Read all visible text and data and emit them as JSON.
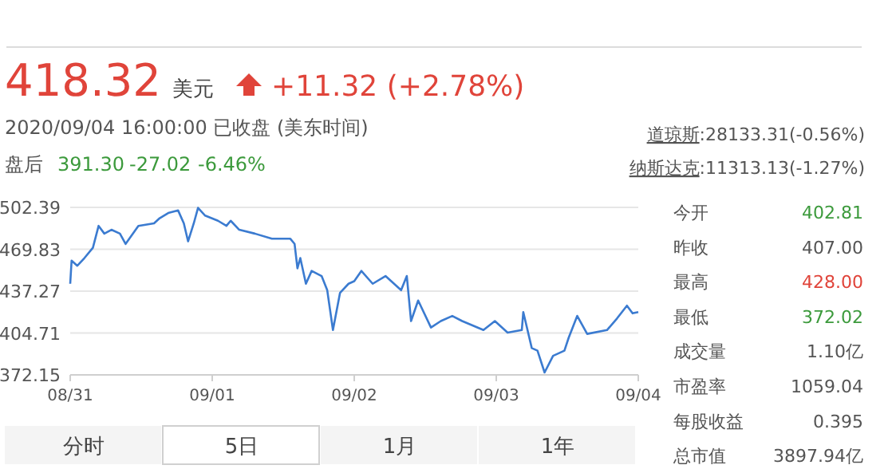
{
  "chart_data": [
    {
      "type": "other",
      "title": "418.32",
      "annotations": [
        "美元",
        "+11.32 (+2.78%)",
        "2020/09/04 16:00:00 已收盘 (美东时间)",
        "盘后",
        "391.30",
        "-27.02",
        "-6.46%",
        "道琼斯",
        ":28133.31(-0.56%)",
        "纳斯达克",
        ":11313.13(-1.27%)"
      ]
    },
    {
      "type": "line",
      "x": [
        "2020-08-31T00:00",
        "2020-08-31T00:14",
        "2020-08-31T01:12",
        "2020-08-31T02:24",
        "2020-08-31T03:50",
        "2020-08-31T04:48",
        "2020-08-31T05:46",
        "2020-08-31T06:58",
        "2020-08-31T08:24",
        "2020-08-31T09:22",
        "2020-08-31T11:31",
        "2020-08-31T14:10",
        "2020-08-31T15:07",
        "2020-08-31T16:34",
        "2020-08-31T18:14",
        "2020-08-31T19:12",
        "2020-08-31T19:55",
        "2020-08-31T20:53",
        "2020-08-31T21:36",
        "2020-08-31T22:48",
        "2020-09-01T00:58",
        "2020-09-01T02:24",
        "2020-09-01T03:07",
        "2020-09-01T04:34",
        "2020-09-01T07:12",
        "2020-09-01T10:05",
        "2020-09-01T13:12",
        "2020-09-01T13:55",
        "2020-09-01T14:24",
        "2020-09-01T14:53",
        "2020-09-01T15:50",
        "2020-09-01T16:48",
        "2020-09-01T18:29",
        "2020-09-01T19:26",
        "2020-09-01T20:24",
        "2020-09-01T21:36",
        "2020-09-01T23:02",
        "2020-09-02T00:00",
        "2020-09-02T01:12",
        "2020-09-02T03:07",
        "2020-09-02T05:17",
        "2020-09-02T07:55",
        "2020-09-02T08:53",
        "2020-09-02T09:36",
        "2020-09-02T10:48",
        "2020-09-02T12:58",
        "2020-09-02T14:38",
        "2020-09-02T16:34",
        "2020-09-02T18:14",
        "2020-09-02T21:50",
        "2020-09-02T23:46",
        "2020-09-03T01:55",
        "2020-09-03T04:19",
        "2020-09-03T04:34",
        "2020-09-03T06:00",
        "2020-09-03T06:58",
        "2020-09-03T08:10",
        "2020-09-03T09:36",
        "2020-09-03T11:31",
        "2020-09-03T12:14",
        "2020-09-03T13:41",
        "2020-09-03T15:22",
        "2020-09-03T18:43",
        "2020-09-03T20:24",
        "2020-09-03T22:05",
        "2020-09-03T23:02",
        "2020-09-04T00:00"
      ],
      "series": [
        {
          "color": "#3b7bd0",
          "values": [
            443,
            461,
            457,
            463,
            471,
            488,
            482,
            485,
            482,
            474,
            488,
            490,
            494,
            498,
            500,
            490,
            476,
            490,
            502,
            496,
            492,
            488,
            492,
            485,
            482,
            478,
            478,
            474,
            455,
            463,
            443,
            453,
            449,
            438,
            407,
            436,
            443,
            445,
            453,
            443,
            449,
            438,
            449,
            414,
            430,
            409,
            414,
            418,
            414,
            407,
            414,
            405,
            407,
            421,
            393,
            391,
            374,
            387,
            391,
            401,
            418,
            404,
            407,
            416,
            426,
            420,
            421
          ]
        }
      ],
      "xlim": [
        "2020-08-31",
        "2020-09-04"
      ],
      "xticks": [
        {
          "value": "2020-08-31",
          "label": "08/31"
        },
        {
          "value": "2020-09-01",
          "label": "09/01"
        },
        {
          "value": "2020-09-02",
          "label": "09/02"
        },
        {
          "value": "2020-09-03",
          "label": "09/03"
        },
        {
          "value": "2020-09-04",
          "label": "09/04"
        }
      ],
      "ylim": [
        372.15,
        502.39
      ],
      "yticks": [
        {
          "value": 372.15,
          "label": "372.15"
        },
        {
          "value": 404.71,
          "label": "404.71"
        },
        {
          "value": 437.27,
          "label": "437.27"
        },
        {
          "value": 469.83,
          "label": "469.83"
        },
        {
          "value": 502.39,
          "label": "502.39"
        }
      ],
      "grid": "y",
      "marker": "none",
      "line_style": "solid"
    },
    {
      "type": "other",
      "annotations": [
        "分时",
        "5日",
        "1月",
        "1年"
      ]
    },
    {
      "type": "other",
      "annotations": [
        "今开",
        "402.81",
        "昨收",
        "407.00",
        "最高",
        "428.00",
        "最低",
        "372.02",
        "成交量",
        "1.10亿",
        "市盈率",
        "1059.04",
        "每股收益",
        "0.395",
        "总市值",
        "3897.94亿"
      ]
    }
  ]
}
